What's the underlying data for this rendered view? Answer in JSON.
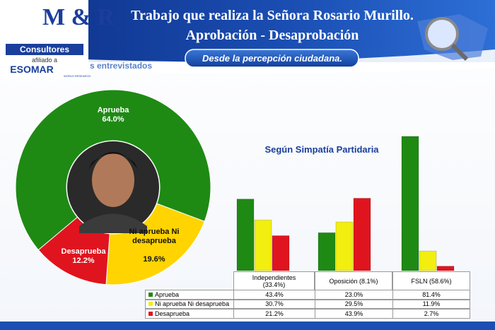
{
  "header": {
    "logo": {
      "brand": "M & R",
      "name": "Consultores",
      "affiliation": "afiliado a",
      "partner": "ESOMAR",
      "partner_tagline": "WORLD RESEARCH"
    },
    "title_line1": "Trabajo que realiza la Señora Rosario Murillo.",
    "title_line2": "Aprobación - Desaprobación",
    "subtitle": "Desde la percepción ciudadana.",
    "section_fragment": "s entrevistados"
  },
  "chart_data": [
    {
      "type": "donut",
      "categories": [
        "Aprueba",
        "Ni aprueba Ni desaprueba",
        "Desaprueba"
      ],
      "values": [
        64.0,
        19.6,
        12.2
      ],
      "value_labels": [
        "64.0%",
        "19.6%",
        "12.2%"
      ],
      "colors": [
        "#1e8a14",
        "#ffd400",
        "#e0141e"
      ]
    },
    {
      "type": "bar",
      "title": "Según Simpatía Partidaria",
      "categories": [
        "Independientes (33.4%)",
        "Oposición (8.1%)",
        "FSLN (58.6%)"
      ],
      "series": [
        {
          "name": "Aprueba",
          "color": "#1e8a14",
          "values": [
            43.4,
            23.0,
            81.4
          ],
          "value_labels": [
            "43.4%",
            "23.0%",
            "81.4%"
          ]
        },
        {
          "name": "Ni aprueba Ni desaprueba",
          "color": "#f2ee10",
          "values": [
            30.7,
            29.5,
            11.9
          ],
          "value_labels": [
            "30.7%",
            "29.5%",
            "11.9%"
          ]
        },
        {
          "name": "Desaprueba",
          "color": "#e0141e",
          "values": [
            21.2,
            43.9,
            2.7
          ],
          "value_labels": [
            "21.2%",
            "43.9%",
            "2.7%"
          ]
        }
      ]
    }
  ]
}
